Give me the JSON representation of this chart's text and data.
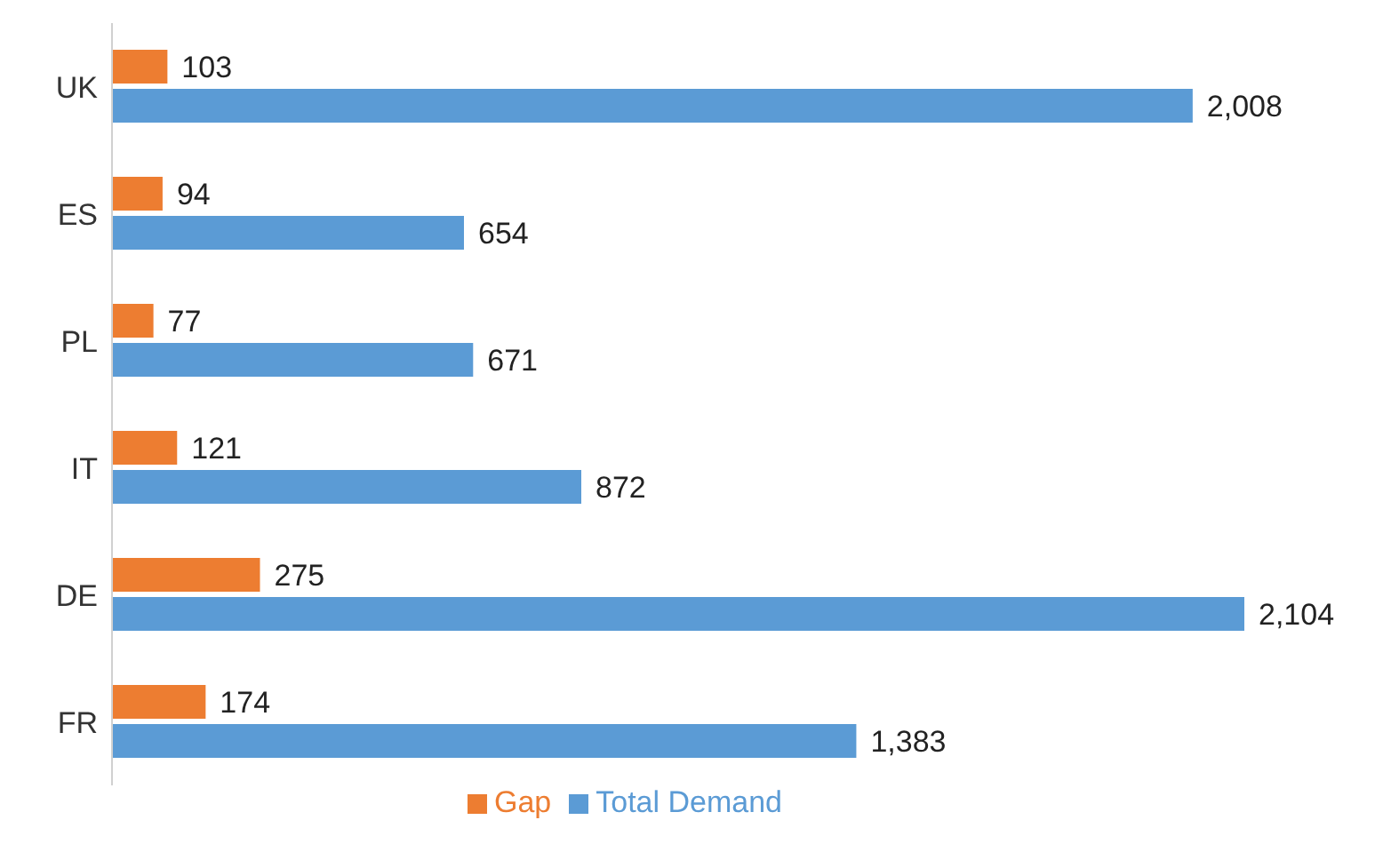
{
  "chart_data": {
    "type": "bar",
    "orientation": "horizontal",
    "categories": [
      "UK",
      "ES",
      "PL",
      "IT",
      "DE",
      "FR"
    ],
    "series": [
      {
        "name": "Gap",
        "color": "#ed7d31",
        "values": [
          103,
          94,
          77,
          121,
          275,
          174
        ],
        "value_labels": [
          "103",
          "94",
          "77",
          "121",
          "275",
          "174"
        ]
      },
      {
        "name": "Total Demand",
        "color": "#5b9bd5",
        "values": [
          2008,
          654,
          671,
          872,
          2104,
          1383
        ],
        "value_labels": [
          "2,008",
          "654",
          "671",
          "872",
          "2,104",
          "1,383"
        ]
      }
    ],
    "legend": "bottom",
    "grid": false,
    "tick_labels": "y"
  }
}
